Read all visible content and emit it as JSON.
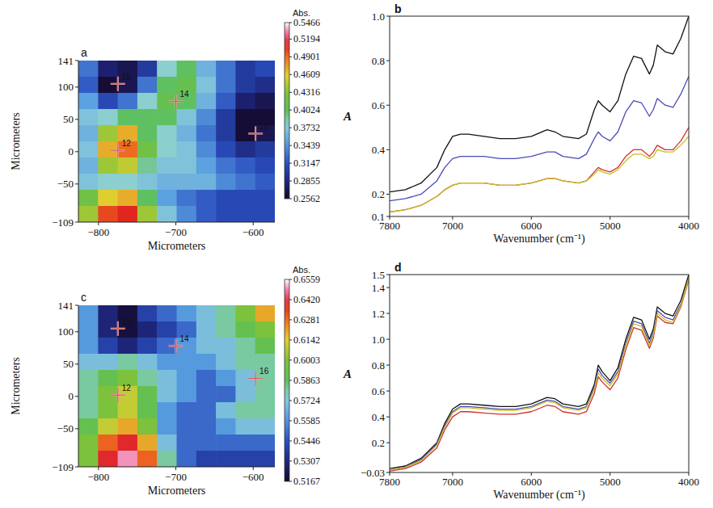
{
  "chart_data": [
    {
      "type": "heatmap",
      "panel_label": "a",
      "x_label": "Micrometers",
      "y_label": "Micrometers",
      "xlim": [
        -826,
        -572
      ],
      "xticks": [
        {
          "value": -800,
          "label": "−800"
        },
        {
          "value": -700,
          "label": "−700"
        },
        {
          "value": -600,
          "label": "−600"
        }
      ],
      "ylim": [
        -109,
        141
      ],
      "yticks": [
        {
          "value": -109,
          "label": "−109"
        },
        {
          "value": -50,
          "label": "−50"
        },
        0,
        50,
        100,
        141
      ],
      "cells": [
        [
          0.33,
          0.28,
          0.27,
          0.3,
          0.38,
          0.4,
          0.36,
          0.33,
          0.3,
          0.31
        ],
        [
          0.32,
          0.26,
          0.27,
          0.33,
          0.4,
          0.41,
          0.37,
          0.33,
          0.3,
          0.29
        ],
        [
          0.35,
          0.31,
          0.33,
          0.38,
          0.41,
          0.4,
          0.36,
          0.32,
          0.28,
          0.27
        ],
        [
          0.37,
          0.38,
          0.4,
          0.4,
          0.4,
          0.37,
          0.34,
          0.3,
          0.26,
          0.26
        ],
        [
          0.36,
          0.44,
          0.47,
          0.4,
          0.38,
          0.36,
          0.33,
          0.3,
          0.26,
          0.27
        ],
        [
          0.37,
          0.47,
          0.49,
          0.42,
          0.38,
          0.37,
          0.34,
          0.31,
          0.29,
          0.3
        ],
        [
          0.36,
          0.44,
          0.45,
          0.39,
          0.37,
          0.37,
          0.35,
          0.33,
          0.32,
          0.31
        ],
        [
          0.37,
          0.38,
          0.38,
          0.37,
          0.36,
          0.36,
          0.36,
          0.34,
          0.33,
          0.32
        ],
        [
          0.42,
          0.46,
          0.47,
          0.4,
          0.35,
          0.33,
          0.32,
          0.31,
          0.31,
          0.31
        ],
        [
          0.44,
          0.5,
          0.51,
          0.44,
          0.37,
          0.34,
          0.32,
          0.31,
          0.31,
          0.31
        ]
      ],
      "colorbar": {
        "title": "Abs.",
        "range": [
          0.2562,
          0.5466
        ],
        "ticks": [
          0.5466,
          0.5194,
          0.4901,
          0.4609,
          0.4316,
          0.4024,
          0.3732,
          0.3439,
          0.3147,
          0.2855,
          0.2562
        ]
      },
      "markers": [
        {
          "label": "15",
          "x": -775,
          "y": 105
        },
        {
          "label": "14",
          "x": -700,
          "y": 78
        },
        {
          "label": "12",
          "x": -775,
          "y": 2
        },
        {
          "label": "16",
          "x": -597,
          "y": 28
        }
      ]
    },
    {
      "type": "line",
      "panel_label": "b",
      "x_label": "Wavenumber (cm⁻¹)",
      "y_label": "A",
      "x": [
        7800,
        7600,
        7400,
        7200,
        7100,
        7000,
        6900,
        6800,
        6600,
        6400,
        6200,
        6000,
        5800,
        5700,
        5600,
        5400,
        5300,
        5200,
        5150,
        5100,
        5000,
        4900,
        4800,
        4700,
        4600,
        4500,
        4450,
        4400,
        4300,
        4200,
        4100,
        4000
      ],
      "xlim": [
        7800,
        4000
      ],
      "xticks": [
        7800,
        7000,
        6000,
        5000,
        4000
      ],
      "ylim": [
        0.1,
        1.0
      ],
      "yticks": [
        0.1,
        0.2,
        0.4,
        0.6,
        0.8,
        {
          "value": 1.0,
          "label": "1.0"
        }
      ],
      "series": [
        {
          "color": "#111111",
          "values": [
            0.21,
            0.22,
            0.25,
            0.32,
            0.4,
            0.46,
            0.47,
            0.47,
            0.46,
            0.45,
            0.45,
            0.46,
            0.49,
            0.48,
            0.46,
            0.45,
            0.47,
            0.58,
            0.62,
            0.6,
            0.57,
            0.62,
            0.74,
            0.82,
            0.81,
            0.74,
            0.78,
            0.87,
            0.84,
            0.83,
            0.9,
            1.0
          ]
        },
        {
          "color": "#4a4ab8",
          "values": [
            0.17,
            0.18,
            0.2,
            0.26,
            0.32,
            0.36,
            0.37,
            0.37,
            0.37,
            0.36,
            0.36,
            0.37,
            0.39,
            0.39,
            0.37,
            0.36,
            0.38,
            0.45,
            0.48,
            0.46,
            0.44,
            0.48,
            0.57,
            0.62,
            0.61,
            0.55,
            0.58,
            0.63,
            0.6,
            0.59,
            0.65,
            0.73
          ]
        },
        {
          "color": "#d03030",
          "values": [
            0.12,
            0.13,
            0.15,
            0.19,
            0.22,
            0.24,
            0.25,
            0.25,
            0.25,
            0.24,
            0.24,
            0.25,
            0.27,
            0.27,
            0.26,
            0.25,
            0.26,
            0.3,
            0.32,
            0.31,
            0.3,
            0.32,
            0.37,
            0.4,
            0.4,
            0.37,
            0.39,
            0.42,
            0.4,
            0.4,
            0.44,
            0.5
          ]
        },
        {
          "color": "#c8c020",
          "values": [
            0.12,
            0.13,
            0.15,
            0.19,
            0.22,
            0.24,
            0.25,
            0.25,
            0.25,
            0.24,
            0.24,
            0.25,
            0.27,
            0.27,
            0.26,
            0.25,
            0.26,
            0.29,
            0.31,
            0.3,
            0.29,
            0.31,
            0.35,
            0.38,
            0.38,
            0.36,
            0.37,
            0.4,
            0.39,
            0.39,
            0.42,
            0.46
          ]
        }
      ]
    },
    {
      "type": "heatmap",
      "panel_label": "c",
      "x_label": "Micrometers",
      "y_label": "Micrometers",
      "xlim": [
        -826,
        -572
      ],
      "xticks": [
        {
          "value": -800,
          "label": "−800"
        },
        {
          "value": -700,
          "label": "−700"
        },
        {
          "value": -600,
          "label": "−600"
        }
      ],
      "ylim": [
        -109,
        141
      ],
      "yticks": [
        {
          "value": -109,
          "label": "−109"
        },
        {
          "value": -50,
          "label": "−50"
        },
        0,
        50,
        100,
        141
      ],
      "cells": [
        [
          0.56,
          0.53,
          0.52,
          0.54,
          0.55,
          0.56,
          0.57,
          0.58,
          0.6,
          0.62
        ],
        [
          0.56,
          0.53,
          0.52,
          0.53,
          0.54,
          0.55,
          0.57,
          0.58,
          0.59,
          0.6
        ],
        [
          0.56,
          0.54,
          0.53,
          0.54,
          0.55,
          0.56,
          0.57,
          0.57,
          0.58,
          0.59
        ],
        [
          0.57,
          0.57,
          0.58,
          0.57,
          0.56,
          0.56,
          0.56,
          0.57,
          0.58,
          0.58
        ],
        [
          0.58,
          0.59,
          0.6,
          0.58,
          0.57,
          0.56,
          0.55,
          0.56,
          0.57,
          0.58
        ],
        [
          0.58,
          0.6,
          0.61,
          0.59,
          0.57,
          0.56,
          0.55,
          0.55,
          0.57,
          0.58
        ],
        [
          0.58,
          0.6,
          0.61,
          0.59,
          0.56,
          0.55,
          0.55,
          0.57,
          0.58,
          0.58
        ],
        [
          0.59,
          0.61,
          0.62,
          0.6,
          0.56,
          0.55,
          0.55,
          0.56,
          0.57,
          0.57
        ],
        [
          0.6,
          0.63,
          0.64,
          0.62,
          0.57,
          0.55,
          0.55,
          0.55,
          0.55,
          0.55
        ],
        [
          0.6,
          0.64,
          0.65,
          0.63,
          0.58,
          0.55,
          0.54,
          0.54,
          0.54,
          0.54
        ]
      ],
      "colorbar": {
        "title": "Abs.",
        "range": [
          0.5167,
          0.6559
        ],
        "ticks": [
          0.6559,
          {
            "value": 0.642,
            "label": "0.6420"
          },
          0.6281,
          0.6142,
          0.6003,
          0.5863,
          0.5724,
          0.5585,
          0.5446,
          0.5307,
          0.5167
        ]
      },
      "markers": [
        {
          "label": "15",
          "x": -775,
          "y": 105
        },
        {
          "label": "14",
          "x": -700,
          "y": 78
        },
        {
          "label": "12",
          "x": -775,
          "y": 2
        },
        {
          "label": "16",
          "x": -597,
          "y": 28
        }
      ]
    },
    {
      "type": "line",
      "panel_label": "d",
      "x_label": "Wavenumber (cm⁻¹)",
      "y_label": "A",
      "x": [
        7800,
        7600,
        7400,
        7200,
        7100,
        7000,
        6900,
        6800,
        6600,
        6400,
        6200,
        6000,
        5800,
        5700,
        5600,
        5400,
        5300,
        5200,
        5150,
        5100,
        5000,
        4900,
        4800,
        4700,
        4600,
        4500,
        4450,
        4400,
        4300,
        4200,
        4100,
        4000
      ],
      "xlim": [
        7800,
        4000
      ],
      "xticks": [
        7800,
        7000,
        6000,
        5000,
        4000
      ],
      "ylim": [
        -0.03,
        1.5
      ],
      "yticks": [
        {
          "value": -0.03,
          "label": "−0.03"
        },
        0.2,
        0.4,
        0.6,
        0.8,
        {
          "value": 1.0,
          "label": "1.0"
        },
        1.2,
        1.4,
        1.5
      ],
      "series": [
        {
          "color": "#111111",
          "values": [
            0.0,
            0.02,
            0.08,
            0.2,
            0.35,
            0.46,
            0.5,
            0.5,
            0.49,
            0.48,
            0.48,
            0.5,
            0.55,
            0.54,
            0.5,
            0.48,
            0.5,
            0.65,
            0.8,
            0.75,
            0.68,
            0.78,
            1.0,
            1.17,
            1.15,
            1.0,
            1.08,
            1.25,
            1.2,
            1.18,
            1.3,
            1.5
          ]
        },
        {
          "color": "#4a4ab8",
          "values": [
            -0.01,
            0.01,
            0.07,
            0.19,
            0.33,
            0.44,
            0.48,
            0.48,
            0.47,
            0.46,
            0.46,
            0.48,
            0.53,
            0.52,
            0.48,
            0.46,
            0.48,
            0.63,
            0.77,
            0.72,
            0.66,
            0.75,
            0.97,
            1.14,
            1.12,
            0.97,
            1.05,
            1.22,
            1.17,
            1.15,
            1.27,
            1.47
          ]
        },
        {
          "color": "#d03030",
          "values": [
            -0.02,
            0.0,
            0.05,
            0.16,
            0.3,
            0.4,
            0.44,
            0.44,
            0.43,
            0.42,
            0.42,
            0.44,
            0.49,
            0.48,
            0.44,
            0.42,
            0.44,
            0.58,
            0.71,
            0.67,
            0.61,
            0.7,
            0.92,
            1.09,
            1.07,
            0.93,
            1.01,
            1.18,
            1.13,
            1.12,
            1.25,
            1.46
          ]
        },
        {
          "color": "#c8c020",
          "values": [
            -0.01,
            0.01,
            0.06,
            0.18,
            0.32,
            0.43,
            0.47,
            0.47,
            0.46,
            0.45,
            0.45,
            0.47,
            0.52,
            0.51,
            0.47,
            0.45,
            0.47,
            0.61,
            0.74,
            0.7,
            0.64,
            0.73,
            0.95,
            1.12,
            1.1,
            0.95,
            1.03,
            1.2,
            1.15,
            1.13,
            1.26,
            1.47
          ]
        }
      ]
    }
  ]
}
